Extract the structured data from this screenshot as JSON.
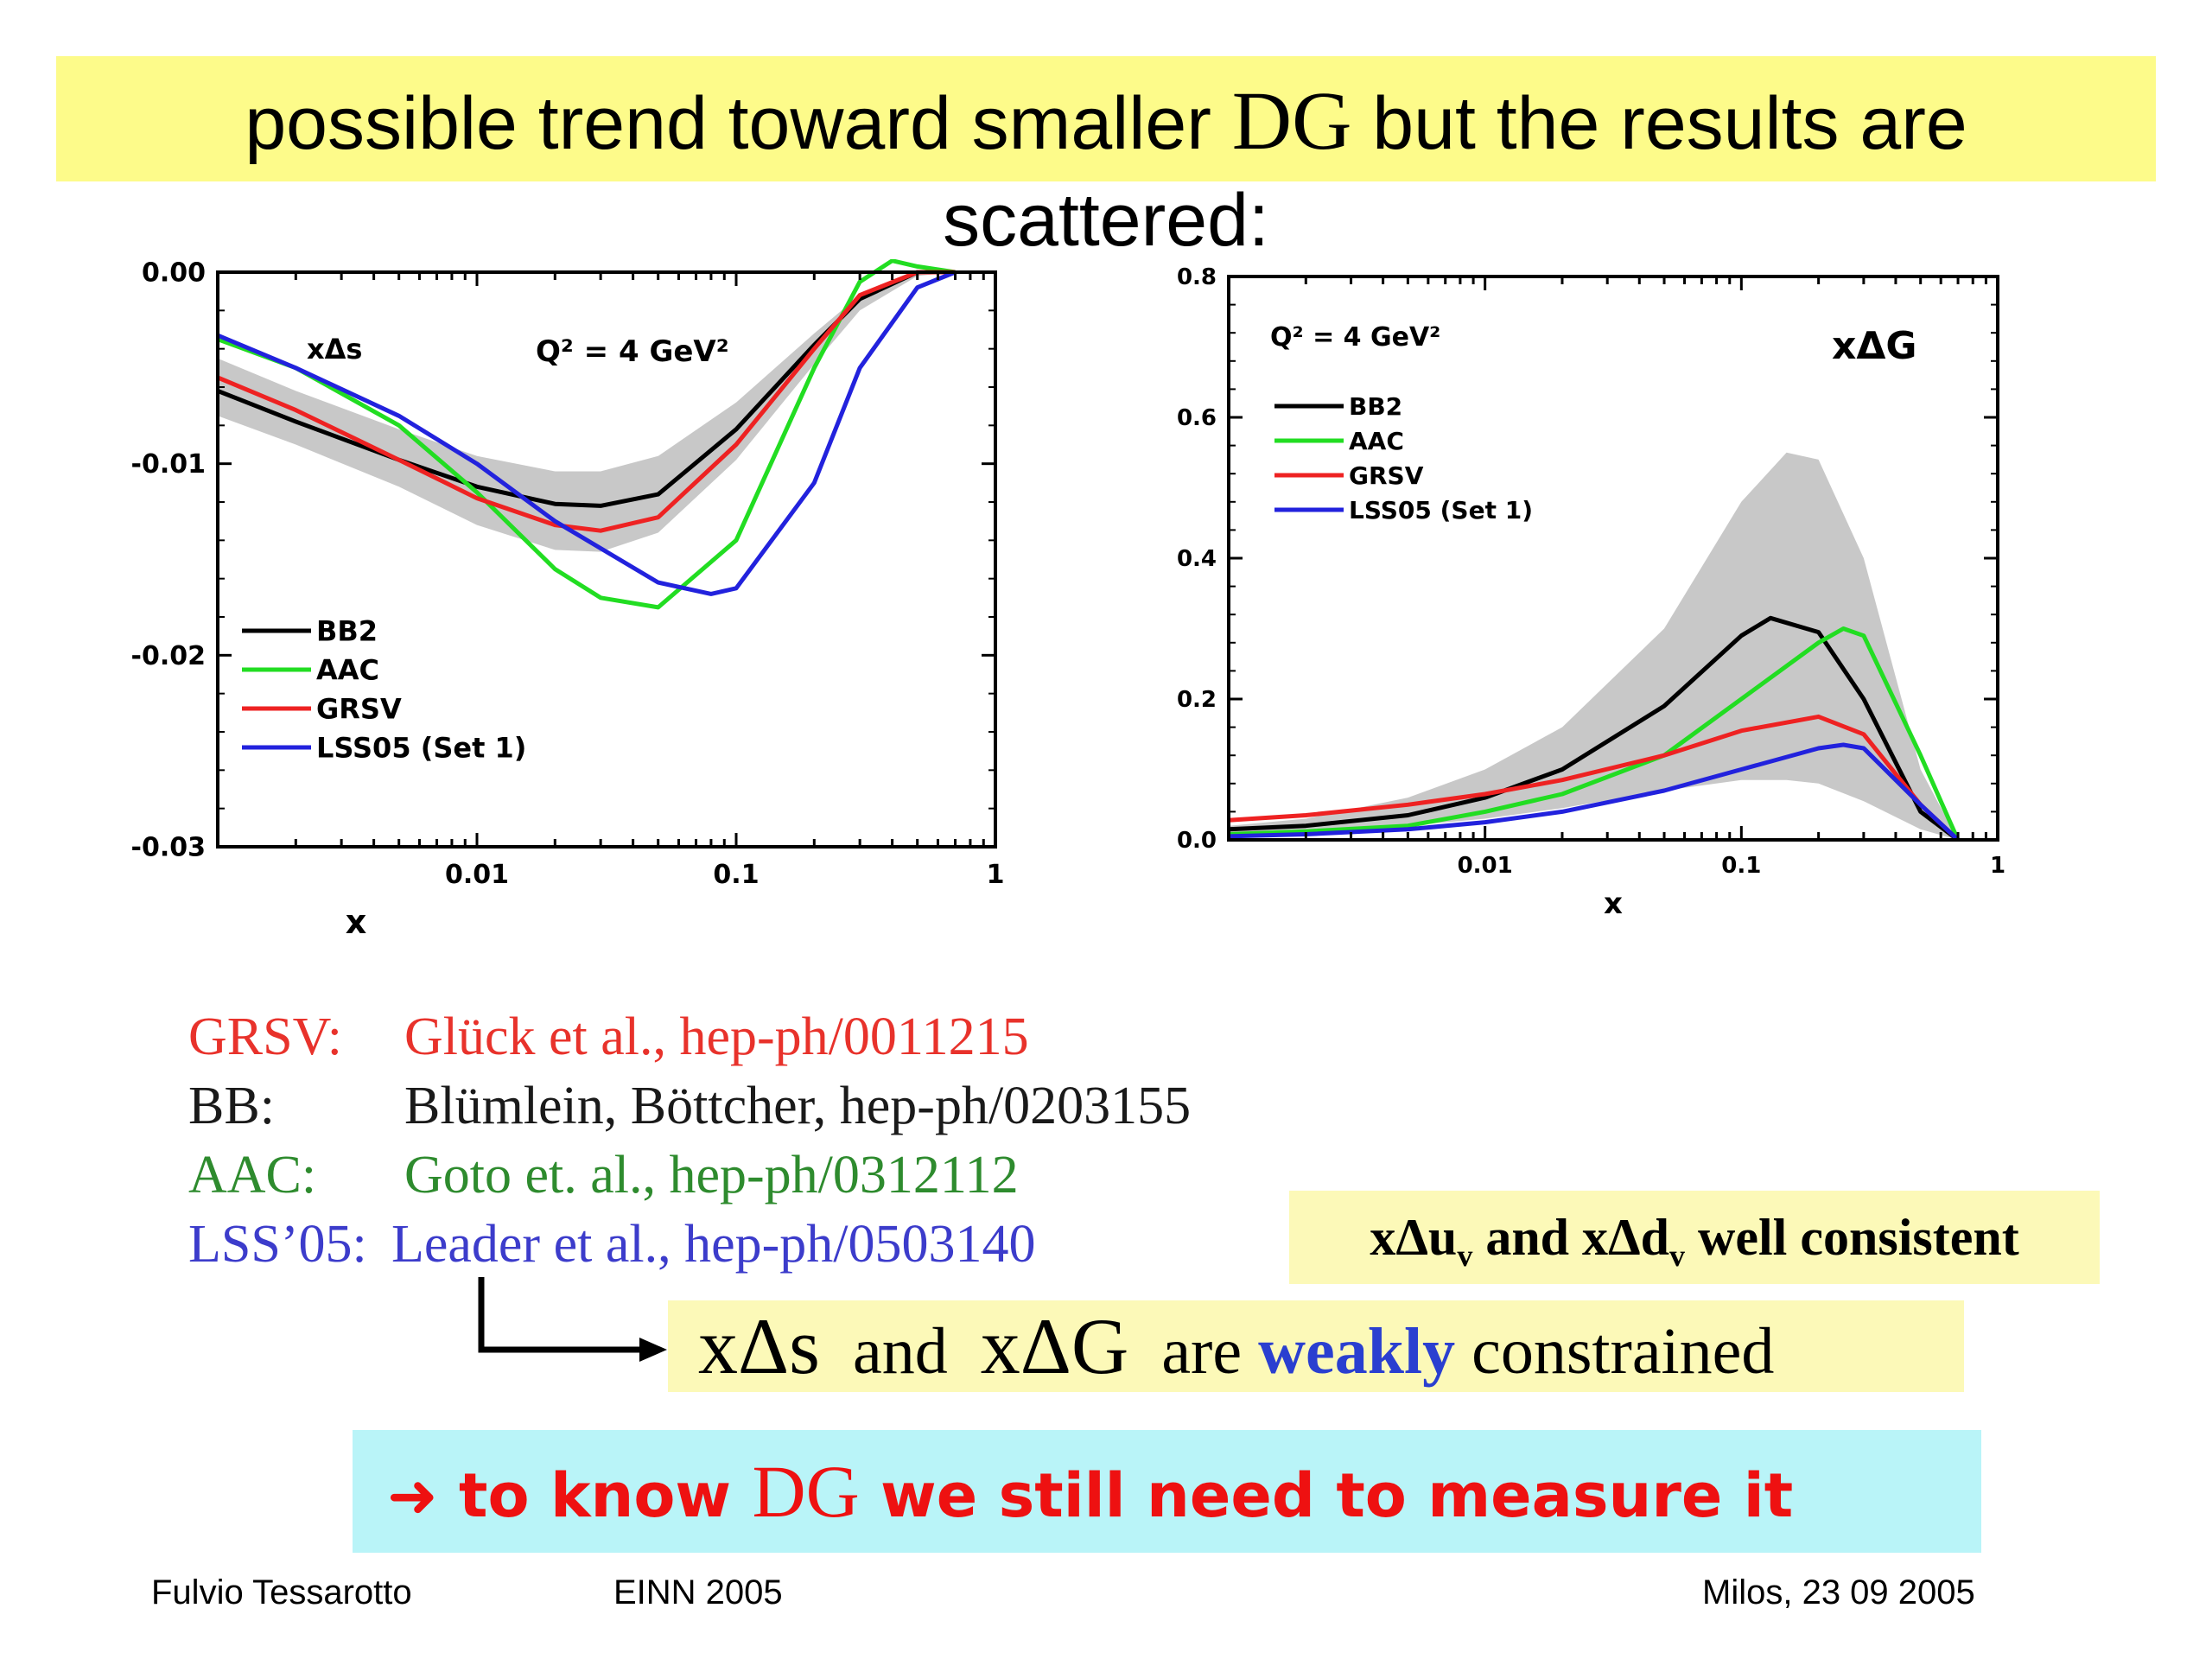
{
  "title": {
    "line1_pre": "possible trend toward smaller ",
    "line1_sym": "DG",
    "line1_post": " but the results are",
    "line2": "scattered:"
  },
  "colors": {
    "BB2": "#000000",
    "AAC": "#22dd22",
    "GRSV": "#ee2222",
    "LSS05": "#2222dd",
    "band": "#c8c8c8"
  },
  "chart_data": [
    {
      "type": "line",
      "annotation": "xΔs",
      "scale_label": "Q² = 4 GeV²",
      "xlabel": "x",
      "xscale": "log",
      "xlim": [
        0.001,
        1
      ],
      "ylim": [
        -0.03,
        0.0
      ],
      "x_ticks": [
        "0.01",
        "0.1",
        "1"
      ],
      "y_ticks": [
        "0.00",
        "-0.01",
        "-0.02",
        "-0.03"
      ],
      "legend": [
        "BB2",
        "AAC",
        "GRSV",
        "LSS05 (Set 1)"
      ],
      "legend_position": "bottom-left",
      "band": {
        "x": [
          0.001,
          0.002,
          0.005,
          0.01,
          0.02,
          0.03,
          0.05,
          0.1,
          0.2,
          0.3,
          0.5,
          0.7
        ],
        "upper": [
          -0.0045,
          -0.0062,
          -0.0082,
          -0.0096,
          -0.0104,
          -0.0104,
          -0.0096,
          -0.0068,
          -0.0032,
          -0.0012,
          0.0,
          0.0
        ],
        "lower": [
          -0.0075,
          -0.009,
          -0.0112,
          -0.0132,
          -0.0145,
          -0.0146,
          -0.0136,
          -0.0098,
          -0.0048,
          -0.002,
          -0.0002,
          0.0
        ]
      },
      "series": [
        {
          "name": "BB2",
          "x": [
            0.001,
            0.002,
            0.005,
            0.01,
            0.02,
            0.03,
            0.05,
            0.1,
            0.2,
            0.3,
            0.5,
            0.7
          ],
          "values": [
            -0.0062,
            -0.0078,
            -0.0098,
            -0.0112,
            -0.0121,
            -0.0122,
            -0.0116,
            -0.0082,
            -0.0038,
            -0.0014,
            0.0,
            0.0
          ]
        },
        {
          "name": "AAC",
          "x": [
            0.001,
            0.002,
            0.005,
            0.01,
            0.02,
            0.03,
            0.05,
            0.1,
            0.2,
            0.3,
            0.4,
            0.5,
            0.7
          ],
          "values": [
            -0.0035,
            -0.005,
            -0.008,
            -0.0115,
            -0.0155,
            -0.017,
            -0.0175,
            -0.014,
            -0.005,
            -0.0005,
            0.0006,
            0.0003,
            0.0
          ]
        },
        {
          "name": "GRSV",
          "x": [
            0.001,
            0.002,
            0.005,
            0.01,
            0.02,
            0.03,
            0.05,
            0.1,
            0.2,
            0.3,
            0.5,
            0.7
          ],
          "values": [
            -0.0055,
            -0.0072,
            -0.0098,
            -0.0118,
            -0.0132,
            -0.0135,
            -0.0128,
            -0.009,
            -0.004,
            -0.0012,
            0.0,
            0.0
          ]
        },
        {
          "name": "LSS05 (Set 1)",
          "x": [
            0.001,
            0.002,
            0.005,
            0.01,
            0.02,
            0.05,
            0.08,
            0.1,
            0.2,
            0.3,
            0.5,
            0.7
          ],
          "values": [
            -0.0033,
            -0.005,
            -0.0075,
            -0.01,
            -0.013,
            -0.0162,
            -0.0168,
            -0.0165,
            -0.011,
            -0.005,
            -0.0008,
            0.0
          ]
        }
      ]
    },
    {
      "type": "line",
      "annotation": "xΔG",
      "scale_label": "Q² = 4 GeV²",
      "xlabel": "x",
      "xscale": "log",
      "xlim": [
        0.001,
        1
      ],
      "ylim": [
        0.0,
        0.8
      ],
      "x_ticks": [
        "0.01",
        "0.1",
        "1"
      ],
      "y_ticks": [
        "0.0",
        "0.2",
        "0.4",
        "0.6",
        "0.8"
      ],
      "legend": [
        "BB2",
        "AAC",
        "GRSV",
        "LSS05 (Set 1)"
      ],
      "legend_position": "top-left",
      "band": {
        "x": [
          0.001,
          0.002,
          0.005,
          0.01,
          0.02,
          0.05,
          0.1,
          0.15,
          0.2,
          0.3,
          0.5,
          0.7
        ],
        "upper": [
          0.02,
          0.03,
          0.06,
          0.1,
          0.16,
          0.3,
          0.48,
          0.55,
          0.54,
          0.4,
          0.1,
          0.0
        ],
        "lower": [
          0.005,
          0.01,
          0.02,
          0.03,
          0.045,
          0.07,
          0.085,
          0.085,
          0.08,
          0.055,
          0.015,
          0.0
        ]
      },
      "series": [
        {
          "name": "BB2",
          "x": [
            0.001,
            0.002,
            0.005,
            0.01,
            0.02,
            0.05,
            0.1,
            0.13,
            0.2,
            0.3,
            0.5,
            0.7
          ],
          "values": [
            0.015,
            0.02,
            0.035,
            0.06,
            0.1,
            0.19,
            0.29,
            0.315,
            0.295,
            0.2,
            0.04,
            0.0
          ]
        },
        {
          "name": "AAC",
          "x": [
            0.001,
            0.002,
            0.005,
            0.01,
            0.02,
            0.05,
            0.1,
            0.2,
            0.25,
            0.3,
            0.5,
            0.7
          ],
          "values": [
            0.008,
            0.012,
            0.02,
            0.04,
            0.065,
            0.12,
            0.2,
            0.28,
            0.3,
            0.29,
            0.12,
            0.0
          ]
        },
        {
          "name": "GRSV",
          "x": [
            0.001,
            0.002,
            0.005,
            0.01,
            0.02,
            0.05,
            0.1,
            0.2,
            0.3,
            0.5,
            0.7
          ],
          "values": [
            0.028,
            0.035,
            0.05,
            0.065,
            0.085,
            0.12,
            0.155,
            0.175,
            0.15,
            0.05,
            0.0
          ]
        },
        {
          "name": "LSS05 (Set 1)",
          "x": [
            0.001,
            0.002,
            0.005,
            0.01,
            0.02,
            0.05,
            0.1,
            0.2,
            0.25,
            0.3,
            0.5,
            0.7
          ],
          "values": [
            0.005,
            0.008,
            0.015,
            0.025,
            0.04,
            0.07,
            0.1,
            0.13,
            0.135,
            0.13,
            0.05,
            0.0
          ]
        }
      ]
    }
  ],
  "references": [
    {
      "key": "GRSV:",
      "text": "Glück et al., hep-ph/0011215"
    },
    {
      "key": "BB:",
      "text": "Blümlein, Böttcher, hep-ph/0203155"
    },
    {
      "key": "AAC:",
      "text": "Goto et. al., hep-ph/0312112"
    },
    {
      "key": "LSS’05:",
      "text": "Leader et al., hep-ph/0503140"
    }
  ],
  "consistent_box": {
    "pre": "xΔu",
    "sub1": "v",
    "mid": " and xΔd",
    "sub2": "v",
    "post": " well consistent"
  },
  "constrained_box": {
    "sym1": "xΔs",
    "and": "  and  ",
    "sym2": "xΔG",
    "are": "  are ",
    "weak": "weakly",
    "post": " constrained"
  },
  "measure_box": {
    "arrow": "➜",
    "pre": " to know ",
    "sym": "DG",
    "post": " we still need to measure it"
  },
  "footer": {
    "author": "Fulvio Tessarotto",
    "conference": "EINN 2005",
    "place_date": "Milos,   23 09 2005"
  }
}
